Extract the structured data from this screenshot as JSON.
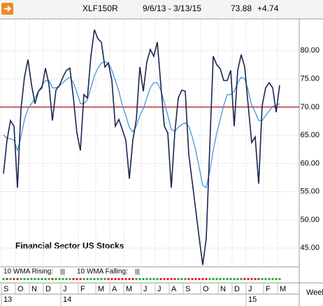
{
  "header": {
    "symbol": "XLF150R",
    "range": "9/6/13 - 3/13/15",
    "last": "73.88",
    "change": "+4.74"
  },
  "chart_data": {
    "type": "line",
    "annotation": "Financial Sector US Stocks",
    "categories": [
      "S",
      null,
      null,
      null,
      "O",
      null,
      null,
      null,
      "N",
      null,
      null,
      null,
      "D",
      null,
      null,
      null,
      null,
      "J",
      null,
      null,
      null,
      null,
      "F",
      null,
      null,
      null,
      null,
      "M",
      null,
      null,
      null,
      "A",
      null,
      null,
      null,
      "M",
      null,
      null,
      null,
      null,
      "J",
      null,
      null,
      null,
      "J",
      null,
      null,
      null,
      "A",
      null,
      null,
      null,
      "S",
      null,
      null,
      null,
      null,
      "O",
      null,
      null,
      null,
      null,
      "N",
      null,
      null,
      null,
      "D",
      null,
      null,
      null,
      "J",
      null,
      null,
      null,
      null,
      "F",
      null,
      null,
      null,
      "M"
    ],
    "years": [
      "13",
      null,
      null,
      null,
      null,
      null,
      null,
      null,
      null,
      null,
      null,
      null,
      null,
      null,
      null,
      null,
      null,
      "14",
      null,
      null,
      null,
      null,
      null,
      null,
      null,
      null,
      null,
      null,
      null,
      null,
      null,
      null,
      null,
      null,
      null,
      null,
      null,
      null,
      null,
      null,
      null,
      null,
      null,
      null,
      null,
      null,
      null,
      null,
      null,
      null,
      null,
      null,
      null,
      null,
      null,
      null,
      null,
      null,
      null,
      null,
      null,
      null,
      null,
      null,
      null,
      null,
      null,
      null,
      null,
      null,
      "15",
      null,
      null,
      null,
      null,
      null,
      null,
      null,
      null,
      null
    ],
    "series": [
      {
        "name": "XLF150R",
        "color": "#1a2550",
        "values": [
          58.2,
          64.1,
          67.6,
          66.6,
          55.7,
          69.7,
          75.3,
          78.4,
          74,
          70.6,
          72.8,
          73.4,
          76.9,
          74,
          67.6,
          73,
          73.8,
          75.3,
          76.5,
          76.9,
          71.6,
          65.4,
          62.3,
          72.2,
          71.6,
          79,
          83.7,
          82.1,
          81.5,
          77.1,
          77.8,
          74.7,
          66.6,
          67.8,
          66,
          64.1,
          57.3,
          64.1,
          67.8,
          77.1,
          72.8,
          78,
          80.2,
          79,
          81.5,
          74,
          66.6,
          65.4,
          55.7,
          65.4,
          71.6,
          73,
          72.8,
          61.6,
          56.7,
          51.7,
          46.7,
          42,
          46.7,
          62.9,
          79,
          77.5,
          76.8,
          74.7,
          74.7,
          76.5,
          66.6,
          76.5,
          79.3,
          77.1,
          70.3,
          63.7,
          64.7,
          56.4,
          70.3,
          73.4,
          74.3,
          73.4,
          69.1,
          73.88
        ]
      },
      {
        "name": "10 WMA",
        "color": "#3a8fd6",
        "values": [
          65.1,
          64.4,
          64.4,
          64.1,
          62.3,
          64.7,
          67.8,
          69.7,
          70.6,
          71.6,
          72.8,
          73.8,
          74.7,
          74.7,
          73.4,
          73.4,
          73.8,
          74.3,
          74.9,
          75.3,
          74.3,
          72.6,
          70.6,
          70.6,
          71.3,
          73.4,
          75.5,
          76.9,
          77.8,
          78,
          77.8,
          76.5,
          74.7,
          72.8,
          70.3,
          68.5,
          66.4,
          65.6,
          66.6,
          68.5,
          69.7,
          71.6,
          73.4,
          74.3,
          74.3,
          73,
          70.9,
          68.5,
          66,
          65.7,
          66.4,
          66.9,
          67.2,
          66.6,
          64.7,
          62.3,
          59.2,
          56.1,
          55.7,
          58.6,
          62.3,
          65.4,
          67.8,
          70.3,
          72.2,
          72.2,
          72.8,
          74.3,
          75.3,
          75,
          73,
          70.3,
          69.1,
          67.6,
          67.6,
          68.5,
          69.3,
          70.1,
          70.3,
          70.6
        ]
      }
    ],
    "reference_line": 70,
    "reference_color": "#a01010",
    "ylim": [
      41.8,
      85.5
    ],
    "yticks": [
      {
        "value": 45,
        "label": "45.00"
      },
      {
        "value": 50,
        "label": "50.00"
      },
      {
        "value": 55,
        "label": "55.00"
      },
      {
        "value": 60,
        "label": "60.00"
      },
      {
        "value": 65,
        "label": "65.00"
      },
      {
        "value": 70,
        "label": "70.00"
      },
      {
        "value": 75,
        "label": "75.00"
      },
      {
        "value": 80,
        "label": "80.00"
      }
    ],
    "grid": true,
    "indicator": {
      "rising_label": "10 WMA Rising:",
      "rising_mark": "|||",
      "rising_color": "#22b022",
      "falling_label": "10 WMA Falling:",
      "falling_mark": "|||",
      "falling_color": "#e02020"
    },
    "x_unit": "Week"
  }
}
